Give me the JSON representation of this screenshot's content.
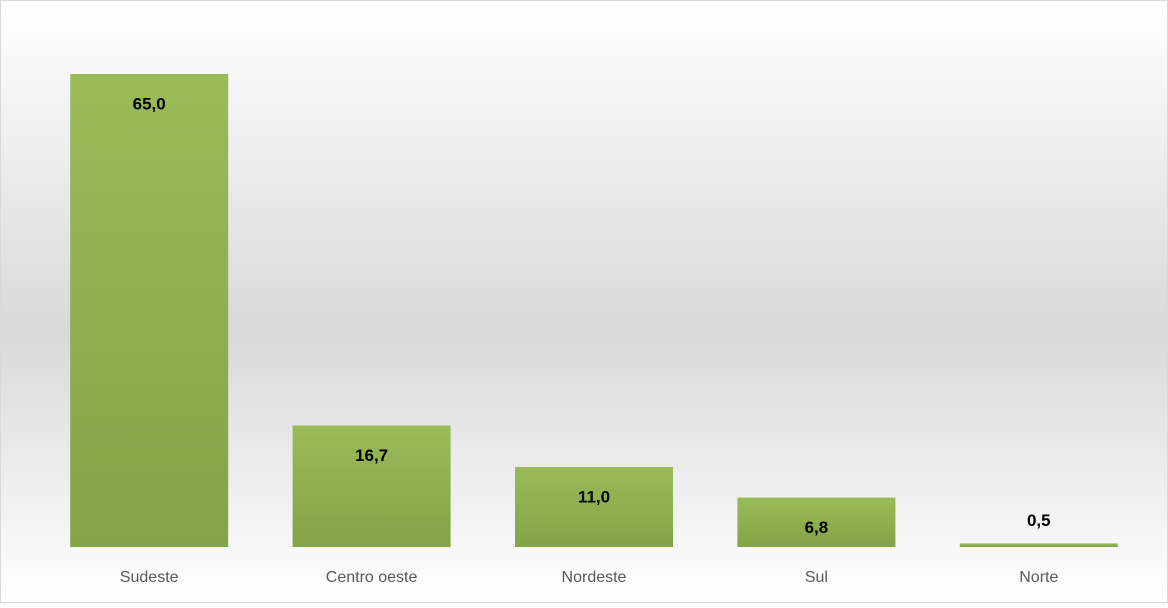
{
  "chart_data": {
    "type": "bar",
    "categories": [
      "Sudeste",
      "Centro oeste",
      "Nordeste",
      "Sul",
      "Norte"
    ],
    "values": [
      65.0,
      16.7,
      11.0,
      6.8,
      0.5
    ],
    "value_labels": [
      "65,0",
      "16,7",
      "11,0",
      "6,8",
      "0,5"
    ],
    "color": "#9bbb59"
  }
}
